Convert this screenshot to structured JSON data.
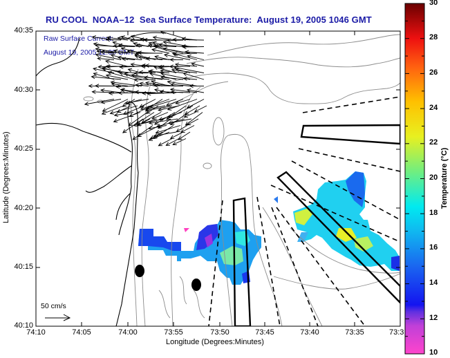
{
  "title": "RU COOL  NOAA–12  Sea Surface Temperature:  August 19, 2005 1046 GMT",
  "current_label": "Raw Surface Current:",
  "current_time": "August 19, 2005 11:00 GMT",
  "scale_label": "50 cm/s",
  "x_axis": {
    "label": "Longitude (Degrees:Minutes)",
    "ticks": [
      "74:10",
      "74:05",
      "74:00",
      "73:55",
      "73:50",
      "73:45",
      "73:40",
      "73:35",
      "73:3"
    ]
  },
  "y_axis": {
    "label": "Latitude (Degrees:Minutes)",
    "ticks": [
      "40:35",
      "40:30",
      "40:25",
      "40:20",
      "40:15",
      "40:10"
    ]
  },
  "colorbar": {
    "label": "Temperature (°C)",
    "ticks": [
      "30",
      "28",
      "26",
      "24",
      "22",
      "20",
      "18",
      "16",
      "14",
      "12",
      "10"
    ],
    "range": [
      10,
      30
    ],
    "stops": [
      "#ff44cc",
      "#8a2be2",
      "#2233ee",
      "#1a6cf0",
      "#00d8f0",
      "#66ee88",
      "#eef020",
      "#ffb000",
      "#ff4010",
      "#e80000",
      "#7a0000"
    ]
  },
  "colors": {
    "title": "#1a1aa6",
    "coast": "#000000",
    "bathymetry": "#8c8c8c"
  }
}
